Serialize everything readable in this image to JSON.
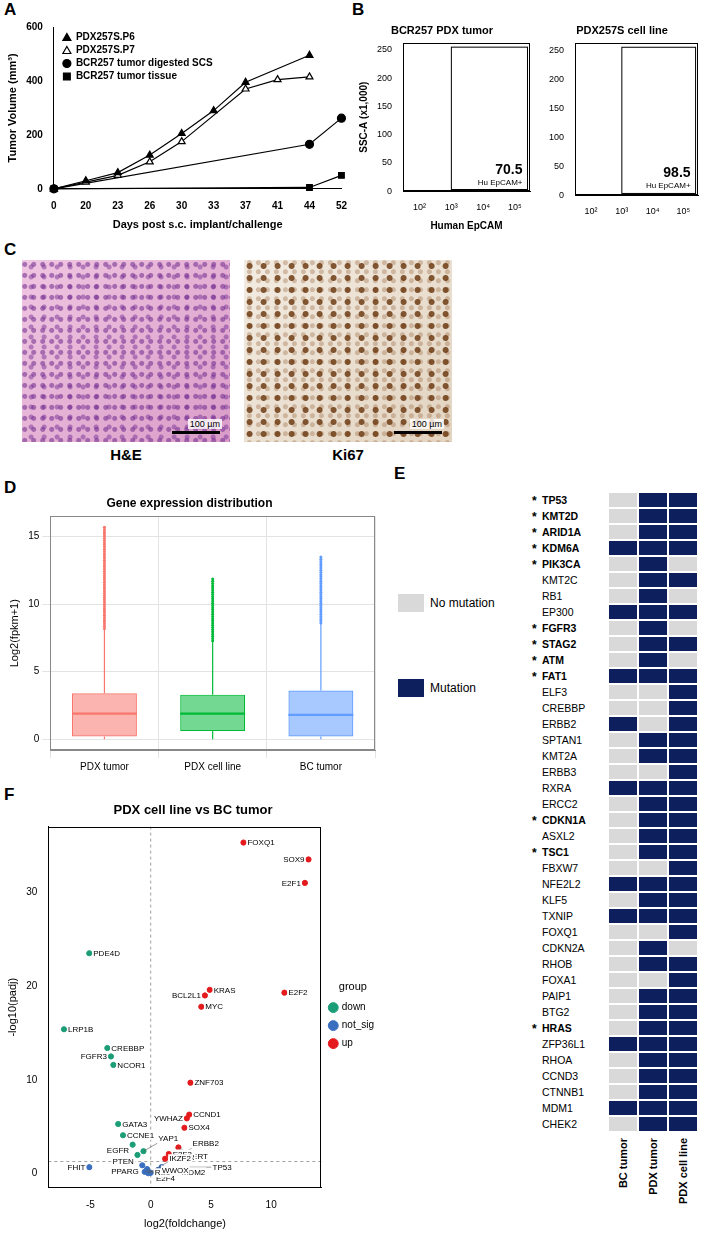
{
  "chart_data": [
    {
      "panel": "A",
      "type": "line",
      "categories": [
        "0",
        "20",
        "23",
        "26",
        "30",
        "33",
        "37",
        "41",
        "44",
        "52"
      ],
      "x_label": "Days post s.c. implant/challenge",
      "y_label": "Tumor Volume (mm³)",
      "ylim": [
        0,
        600
      ],
      "yticks": [
        0,
        200,
        400,
        600
      ],
      "grid": false,
      "legend": "upper left",
      "series": [
        {
          "name": "PDX257S.P6",
          "color": "#000000",
          "marker": "triangle",
          "values": [
            0,
            30,
            60,
            125,
            205,
            290,
            395,
            null,
            495,
            null
          ]
        },
        {
          "name": "PDX257S.P7",
          "color": "#000000",
          "marker": "open_triangle",
          "values": [
            0,
            25,
            50,
            100,
            175,
            null,
            370,
            405,
            415,
            null
          ]
        },
        {
          "name": "BCR257 tumor digested SCS",
          "color": "#000000",
          "marker": "circle",
          "values": [
            0,
            null,
            null,
            null,
            null,
            null,
            null,
            null,
            165,
            262
          ]
        },
        {
          "name": "BCR257 tumor tissue",
          "color": "#000000",
          "marker": "square",
          "values": [
            0,
            null,
            null,
            null,
            null,
            null,
            null,
            null,
            5,
            50
          ]
        }
      ]
    },
    {
      "panel": "B",
      "type": "scatter",
      "x_label": "Human EpCAM",
      "y_label": "SSC-A (x1,000)",
      "log": "x",
      "xlim": [
        30,
        300000
      ],
      "xticks": [
        {
          "value": 100,
          "label": "10²"
        },
        {
          "value": 1000,
          "label": "10³"
        },
        {
          "value": 10000,
          "label": "10⁴"
        },
        {
          "value": 100000,
          "label": "10⁵"
        }
      ],
      "ylim": [
        0,
        262
      ],
      "yticks": [
        0,
        50,
        100,
        150,
        200,
        250
      ],
      "gate": {
        "label": "Hu EpCAM+",
        "x": [
          1000,
          250000
        ],
        "y": [
          3,
          255
        ]
      },
      "plots": [
        {
          "title": "BCR257 PDX tumor",
          "percent": 70.5
        },
        {
          "title": "PDX257S cell line",
          "percent": 98.5
        }
      ]
    },
    {
      "panel": "C",
      "type": "image",
      "images": [
        {
          "caption": "H&E",
          "scale_bar": "100 µm"
        },
        {
          "caption": "Ki67",
          "scale_bar": "100 µm"
        }
      ]
    },
    {
      "panel": "D",
      "type": "box",
      "title": "Gene expression distribution",
      "y_label": "Log2(fpkm+1)",
      "categories": [
        "PDX tumor",
        "PDX cell line",
        "BC tumor"
      ],
      "colors": [
        "#f8766d",
        "#00ba38",
        "#619cff"
      ],
      "boxes": [
        {
          "whisker_low": 0,
          "q1": 0.2,
          "median": 1.9,
          "q3": 3.4,
          "whisker_high": 8.2,
          "outlier_range": [
            8.2,
            15.8
          ]
        },
        {
          "whisker_low": 0,
          "q1": 0.6,
          "median": 1.9,
          "q3": 3.3,
          "whisker_high": 7.3,
          "outlier_range": [
            7.3,
            12.0
          ]
        },
        {
          "whisker_low": 0,
          "q1": 0.2,
          "median": 1.8,
          "q3": 3.6,
          "whisker_high": 8.6,
          "outlier_range": [
            8.6,
            13.5
          ]
        }
      ],
      "ylim": [
        -0.8,
        16.5
      ],
      "yticks": [
        0,
        5,
        10,
        15
      ],
      "grid": true
    },
    {
      "panel": "E",
      "type": "table",
      "columns": [
        "BC tumor",
        "PDX tumor",
        "PDX cell line"
      ],
      "legend_items": [
        {
          "label": "No mutation",
          "color": "#d9d9d9"
        },
        {
          "label": "Mutation",
          "color": "#0d1f5c"
        }
      ],
      "highlight_mark": "*",
      "rows": [
        {
          "gene": "TP53",
          "highlight": true,
          "mutated": [
            false,
            true,
            true
          ]
        },
        {
          "gene": "KMT2D",
          "highlight": true,
          "mutated": [
            false,
            true,
            true
          ]
        },
        {
          "gene": "ARID1A",
          "highlight": true,
          "mutated": [
            false,
            true,
            true
          ]
        },
        {
          "gene": "KDM6A",
          "highlight": true,
          "mutated": [
            true,
            true,
            true
          ]
        },
        {
          "gene": "PIK3CA",
          "highlight": true,
          "mutated": [
            false,
            true,
            false
          ]
        },
        {
          "gene": "KMT2C",
          "highlight": false,
          "mutated": [
            false,
            true,
            true
          ]
        },
        {
          "gene": "RB1",
          "highlight": false,
          "mutated": [
            false,
            true,
            false
          ]
        },
        {
          "gene": "EP300",
          "highlight": false,
          "mutated": [
            true,
            true,
            true
          ]
        },
        {
          "gene": "FGFR3",
          "highlight": true,
          "mutated": [
            false,
            true,
            false
          ]
        },
        {
          "gene": "STAG2",
          "highlight": true,
          "mutated": [
            false,
            true,
            true
          ]
        },
        {
          "gene": "ATM",
          "highlight": true,
          "mutated": [
            false,
            true,
            false
          ]
        },
        {
          "gene": "FAT1",
          "highlight": true,
          "mutated": [
            true,
            true,
            true
          ]
        },
        {
          "gene": "ELF3",
          "highlight": false,
          "mutated": [
            false,
            false,
            true
          ]
        },
        {
          "gene": "CREBBP",
          "highlight": false,
          "mutated": [
            false,
            false,
            true
          ]
        },
        {
          "gene": "ERBB2",
          "highlight": false,
          "mutated": [
            true,
            false,
            true
          ]
        },
        {
          "gene": "SPTAN1",
          "highlight": false,
          "mutated": [
            false,
            true,
            true
          ]
        },
        {
          "gene": "KMT2A",
          "highlight": false,
          "mutated": [
            false,
            true,
            true
          ]
        },
        {
          "gene": "ERBB3",
          "highlight": false,
          "mutated": [
            false,
            false,
            true
          ]
        },
        {
          "gene": "RXRA",
          "highlight": false,
          "mutated": [
            true,
            true,
            true
          ]
        },
        {
          "gene": "ERCC2",
          "highlight": false,
          "mutated": [
            false,
            true,
            true
          ]
        },
        {
          "gene": "CDKN1A",
          "highlight": true,
          "mutated": [
            false,
            true,
            true
          ]
        },
        {
          "gene": "ASXL2",
          "highlight": false,
          "mutated": [
            false,
            true,
            true
          ]
        },
        {
          "gene": "TSC1",
          "highlight": true,
          "mutated": [
            false,
            true,
            true
          ]
        },
        {
          "gene": "FBXW7",
          "highlight": false,
          "mutated": [
            false,
            false,
            true
          ]
        },
        {
          "gene": "NFE2L2",
          "highlight": false,
          "mutated": [
            true,
            true,
            true
          ]
        },
        {
          "gene": "KLF5",
          "highlight": false,
          "mutated": [
            false,
            true,
            true
          ]
        },
        {
          "gene": "TXNIP",
          "highlight": false,
          "mutated": [
            true,
            true,
            true
          ]
        },
        {
          "gene": "FOXQ1",
          "highlight": false,
          "mutated": [
            false,
            false,
            true
          ]
        },
        {
          "gene": "CDKN2A",
          "highlight": false,
          "mutated": [
            false,
            true,
            false
          ]
        },
        {
          "gene": "RHOB",
          "highlight": false,
          "mutated": [
            false,
            true,
            true
          ]
        },
        {
          "gene": "FOXA1",
          "highlight": false,
          "mutated": [
            false,
            false,
            true
          ]
        },
        {
          "gene": "PAIP1",
          "highlight": false,
          "mutated": [
            false,
            true,
            true
          ]
        },
        {
          "gene": "BTG2",
          "highlight": false,
          "mutated": [
            false,
            true,
            true
          ]
        },
        {
          "gene": "HRAS",
          "highlight": true,
          "mutated": [
            false,
            true,
            true
          ]
        },
        {
          "gene": "ZFP36L1",
          "highlight": false,
          "mutated": [
            true,
            true,
            true
          ]
        },
        {
          "gene": "RHOA",
          "highlight": false,
          "mutated": [
            false,
            true,
            true
          ]
        },
        {
          "gene": "CCND3",
          "highlight": false,
          "mutated": [
            false,
            true,
            true
          ]
        },
        {
          "gene": "CTNNB1",
          "highlight": false,
          "mutated": [
            false,
            true,
            true
          ]
        },
        {
          "gene": "MDM1",
          "highlight": false,
          "mutated": [
            true,
            true,
            true
          ]
        },
        {
          "gene": "CHEK2",
          "highlight": false,
          "mutated": [
            false,
            true,
            true
          ]
        }
      ]
    },
    {
      "panel": "F",
      "type": "scatter",
      "title": "PDX cell line vs BC tumor",
      "x_label": "log2(foldchange)",
      "y_label": "-log10(padj)",
      "xlim": [
        -8.5,
        14.2
      ],
      "xticks": [
        -5,
        0,
        5,
        10
      ],
      "ylim": [
        -1.5,
        37
      ],
      "yticks": [
        0,
        10,
        20,
        30
      ],
      "grid": false,
      "legend": "right",
      "legend_title": "group",
      "reference_lines": {
        "x": 0,
        "y": 1.3
      },
      "series": [
        {
          "name": "down",
          "color": "#1b9e77",
          "points": [
            {
              "label": "PDE4D",
              "x": -5.1,
              "y": 23.5
            },
            {
              "label": "LRP1B",
              "x": -7.2,
              "y": 15.4
            },
            {
              "label": "CREBBP",
              "x": -3.6,
              "y": 13.4
            },
            {
              "label": "FGFR3",
              "x": -3.3,
              "y": 12.5
            },
            {
              "label": "NCOR1",
              "x": -3.1,
              "y": 11.6
            },
            {
              "label": "GATA3",
              "x": -2.7,
              "y": 5.3
            },
            {
              "label": "CCNE1",
              "x": -2.3,
              "y": 4.1
            },
            {
              "label": "EGFR",
              "x": -1.5,
              "y": 3.1
            },
            {
              "label": "PTEN",
              "x": -1.1,
              "y": 2.0
            },
            {
              "label": "YAP1",
              "x": -0.6,
              "y": 2.4
            }
          ]
        },
        {
          "name": "not_sig",
          "color": "#3a6fc0",
          "points": [
            {
              "label": "FHIT",
              "x": -5.1,
              "y": 0.7
            },
            {
              "label": "PPARG",
              "x": -0.7,
              "y": 0.9
            },
            {
              "label": "E2F4",
              "x": -0.3,
              "y": 0.5
            },
            {
              "label": "MDM2",
              "x": -0.5,
              "y": 0.2
            },
            {
              "label": "ERBB2",
              "x": -0.2,
              "y": 0.05
            },
            {
              "label": "RB1",
              "x": 0.0,
              "y": 0.1
            },
            {
              "label": "TP53",
              "x": 0.9,
              "y": 0.7
            },
            {
              "label": "WWOX",
              "x": 0.6,
              "y": 0.4
            }
          ]
        },
        {
          "name": "up",
          "color": "#e41a1c",
          "points": [
            {
              "label": "FOXQ1",
              "x": 7.7,
              "y": 35.3
            },
            {
              "label": "SOX9",
              "x": 13.1,
              "y": 33.5
            },
            {
              "label": "E2F1",
              "x": 12.8,
              "y": 31.0
            },
            {
              "label": "KRAS",
              "x": 4.9,
              "y": 19.6
            },
            {
              "label": "BCL2L1",
              "x": 4.5,
              "y": 19.0
            },
            {
              "label": "MYC",
              "x": 4.2,
              "y": 17.8
            },
            {
              "label": "E2F2",
              "x": 11.1,
              "y": 19.3
            },
            {
              "label": "ZNF703",
              "x": 3.3,
              "y": 9.7
            },
            {
              "label": "CCND1",
              "x": 3.2,
              "y": 6.3
            },
            {
              "label": "YWHAZ",
              "x": 3.0,
              "y": 5.9
            },
            {
              "label": "SOX4",
              "x": 2.8,
              "y": 4.9
            },
            {
              "label": "TERT",
              "x": 2.3,
              "y": 2.8
            },
            {
              "label": "AHR",
              "x": 1.9,
              "y": 1.8
            },
            {
              "label": "E2F3",
              "x": 1.5,
              "y": 2.1
            },
            {
              "label": "IKZF2",
              "x": 1.2,
              "y": 1.6
            }
          ]
        }
      ]
    }
  ]
}
